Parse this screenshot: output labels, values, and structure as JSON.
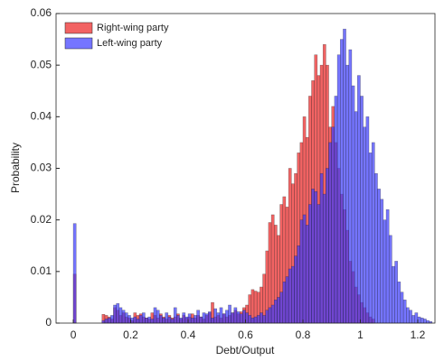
{
  "chart_data": {
    "type": "histogram",
    "xlabel": "Debt/Output",
    "ylabel": "Probability",
    "xlim": [
      -0.06,
      1.26
    ],
    "ylim": [
      0,
      0.06
    ],
    "xticks": [
      0,
      0.2,
      0.4,
      0.6,
      0.8,
      1,
      1.2
    ],
    "yticks": [
      0,
      0.01,
      0.02,
      0.03,
      0.04,
      0.05,
      0.06
    ],
    "legend": "upper left",
    "bins": [
      0,
      0.01,
      0.02,
      0.03,
      0.04,
      0.05,
      0.06,
      0.07,
      0.08,
      0.09,
      0.1,
      0.11,
      0.12,
      0.13,
      0.14,
      0.15,
      0.16,
      0.17,
      0.18,
      0.19,
      0.2,
      0.21,
      0.22,
      0.23,
      0.24,
      0.25,
      0.26,
      0.27,
      0.28,
      0.29,
      0.3,
      0.31,
      0.32,
      0.33,
      0.34,
      0.35,
      0.36,
      0.37,
      0.38,
      0.39,
      0.4,
      0.41,
      0.42,
      0.43,
      0.44,
      0.45,
      0.46,
      0.47,
      0.48,
      0.49,
      0.5,
      0.51,
      0.52,
      0.53,
      0.54,
      0.55,
      0.56,
      0.57,
      0.58,
      0.59,
      0.6,
      0.61,
      0.62,
      0.63,
      0.64,
      0.65,
      0.66,
      0.67,
      0.68,
      0.69,
      0.7,
      0.71,
      0.72,
      0.73,
      0.74,
      0.75,
      0.76,
      0.77,
      0.78,
      0.79,
      0.8,
      0.81,
      0.82,
      0.83,
      0.84,
      0.85,
      0.86,
      0.87,
      0.88,
      0.89,
      0.9,
      0.91,
      0.92,
      0.93,
      0.94,
      0.95,
      0.96,
      0.97,
      0.98,
      0.99,
      1,
      1.01,
      1.02,
      1.03,
      1.04,
      1.05,
      1.06,
      1.07,
      1.08,
      1.09,
      1.1,
      1.11,
      1.12,
      1.13,
      1.14,
      1.15,
      1.16,
      1.17,
      1.18,
      1.19,
      1.2,
      1.21,
      1.22,
      1.23,
      1.24,
      1.25
    ],
    "series": [
      {
        "name": "Right-wing party",
        "color": "#f04848",
        "opacity": 0.85,
        "values": [
          0.0095,
          0,
          0,
          0,
          0,
          0,
          0,
          0,
          0,
          0,
          0.0017,
          0.0015,
          0.0012,
          0.0008,
          0.003,
          0.0025,
          0.0015,
          0.002,
          0.0012,
          0.001,
          0.0005,
          0.002,
          0.0015,
          0.0018,
          0.0012,
          0.001,
          0.0008,
          0.002,
          0.0015,
          0.001,
          0.0018,
          0.0012,
          0.0008,
          0.0015,
          0.001,
          0.0012,
          0.0018,
          0.0008,
          0.0015,
          0.001,
          0.0012,
          0.0018,
          0.001,
          0.0015,
          0.0012,
          0.0008,
          0.0015,
          0.002,
          0.004,
          0.0012,
          0.0015,
          0.001,
          0.0018,
          0.0012,
          0.0015,
          0.002,
          0.0025,
          0.0018,
          0.0022,
          0.003,
          0.0035,
          0.0055,
          0.0065,
          0.0062,
          0.006,
          0.007,
          0.0095,
          0.014,
          0.0195,
          0.021,
          0.019,
          0.017,
          0.023,
          0.0245,
          0.0225,
          0.03,
          0.027,
          0.029,
          0.033,
          0.035,
          0.04,
          0.036,
          0.044,
          0.047,
          0.052,
          0.048,
          0.05,
          0.054,
          0.05,
          0.038,
          0.042,
          0.035,
          0.03,
          0.025,
          0.022,
          0.018,
          0.012,
          0.01,
          0.007,
          0.0055,
          0.004,
          0.003,
          0.002,
          0.0012,
          0.0008,
          0,
          0,
          0,
          0,
          0,
          0,
          0,
          0,
          0,
          0,
          0,
          0,
          0,
          0,
          0,
          0,
          0,
          0,
          0,
          0
        ]
      },
      {
        "name": "Left-wing party",
        "color": "#3a3aff",
        "opacity": 0.7,
        "values": [
          0.0193,
          0,
          0,
          0,
          0,
          0,
          0,
          0,
          0,
          0,
          0.0005,
          0.0008,
          0.001,
          0.0015,
          0.0035,
          0.0038,
          0.003,
          0.0025,
          0.002,
          0.0015,
          0.001,
          0.0012,
          0.0008,
          0.0015,
          0.002,
          0.001,
          0.0012,
          0.0008,
          0.003,
          0.0025,
          0.0015,
          0.001,
          0.002,
          0.0012,
          0.0008,
          0.003,
          0.0015,
          0.001,
          0.002,
          0.0012,
          0.0018,
          0.001,
          0.0015,
          0.0025,
          0.0012,
          0.002,
          0.0018,
          0.0022,
          0.001,
          0.0028,
          0.002,
          0.003,
          0.0018,
          0.0025,
          0.0035,
          0.002,
          0.003,
          0.0022,
          0.0018,
          0.0025,
          0.002,
          0.0015,
          0.001,
          0.0012,
          0.0015,
          0.002,
          0.0015,
          0.0025,
          0.003,
          0.0035,
          0.0045,
          0.005,
          0.006,
          0.008,
          0.009,
          0.0105,
          0.011,
          0.013,
          0.015,
          0.02,
          0.021,
          0.019,
          0.023,
          0.026,
          0.0255,
          0.023,
          0.029,
          0.025,
          0.03,
          0.035,
          0.038,
          0.044,
          0.052,
          0.055,
          0.057,
          0.05,
          0.053,
          0.046,
          0.041,
          0.048,
          0.044,
          0.038,
          0.04,
          0.033,
          0.035,
          0.029,
          0.026,
          0.024,
          0.02,
          0.022,
          0.017,
          0.011,
          0.012,
          0.008,
          0.006,
          0.0045,
          0.003,
          0.0025,
          0.0015,
          0.002,
          0.0012,
          0.001,
          0.0008,
          0.0005,
          0.0003
        ]
      }
    ]
  }
}
